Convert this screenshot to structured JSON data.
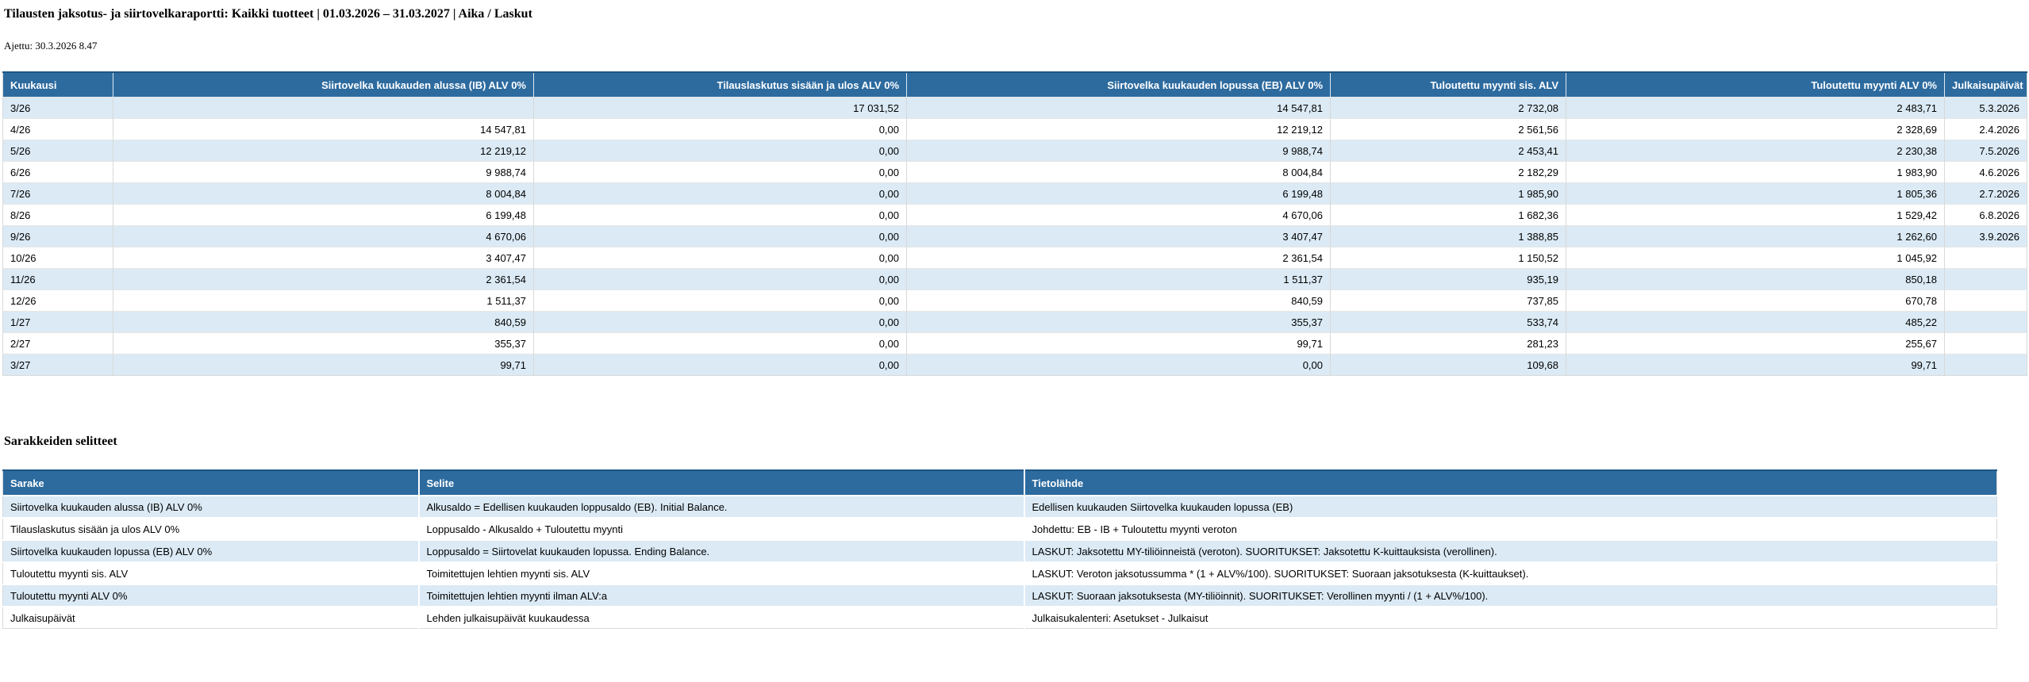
{
  "report": {
    "title": "Tilausten jaksotus- ja siirtovelkaraportti: Kaikki tuotteet | 01.03.2026 – 31.03.2027 | Aika / Laskut",
    "run_label": "Ajettu: 30.3.2026 8.47"
  },
  "main_table": {
    "columns": [
      "Kuukausi",
      "Siirtovelka kuukauden alussa (IB) ALV 0%",
      "Tilauslaskutus sisään ja ulos ALV 0%",
      "Siirtovelka kuukauden lopussa (EB) ALV 0%",
      "Tuloutettu myynti sis. ALV",
      "Tuloutettu myynti ALV 0%",
      "Julkaisupäivät"
    ],
    "rows": [
      [
        "3/26",
        "",
        "17 031,52",
        "14 547,81",
        "2 732,08",
        "2 483,71",
        "5.3.2026"
      ],
      [
        "4/26",
        "14 547,81",
        "0,00",
        "12 219,12",
        "2 561,56",
        "2 328,69",
        "2.4.2026"
      ],
      [
        "5/26",
        "12 219,12",
        "0,00",
        "9 988,74",
        "2 453,41",
        "2 230,38",
        "7.5.2026"
      ],
      [
        "6/26",
        "9 988,74",
        "0,00",
        "8 004,84",
        "2 182,29",
        "1 983,90",
        "4.6.2026"
      ],
      [
        "7/26",
        "8 004,84",
        "0,00",
        "6 199,48",
        "1 985,90",
        "1 805,36",
        "2.7.2026"
      ],
      [
        "8/26",
        "6 199,48",
        "0,00",
        "4 670,06",
        "1 682,36",
        "1 529,42",
        "6.8.2026"
      ],
      [
        "9/26",
        "4 670,06",
        "0,00",
        "3 407,47",
        "1 388,85",
        "1 262,60",
        "3.9.2026"
      ],
      [
        "10/26",
        "3 407,47",
        "0,00",
        "2 361,54",
        "1 150,52",
        "1 045,92",
        ""
      ],
      [
        "11/26",
        "2 361,54",
        "0,00",
        "1 511,37",
        "935,19",
        "850,18",
        ""
      ],
      [
        "12/26",
        "1 511,37",
        "0,00",
        "840,59",
        "737,85",
        "670,78",
        ""
      ],
      [
        "1/27",
        "840,59",
        "0,00",
        "355,37",
        "533,74",
        "485,22",
        ""
      ],
      [
        "2/27",
        "355,37",
        "0,00",
        "99,71",
        "281,23",
        "255,67",
        ""
      ],
      [
        "3/27",
        "99,71",
        "0,00",
        "0,00",
        "109,68",
        "99,71",
        ""
      ]
    ]
  },
  "legend": {
    "heading": "Sarakkeiden selitteet",
    "columns": [
      "Sarake",
      "Selite",
      "Tietolähde"
    ],
    "rows": [
      [
        "Siirtovelka kuukauden alussa (IB) ALV 0%",
        "Alkusaldo = Edellisen kuukauden loppusaldo (EB). Initial Balance.",
        "Edellisen kuukauden Siirtovelka kuukauden lopussa (EB)"
      ],
      [
        "Tilauslaskutus sisään ja ulos ALV 0%",
        "Loppusaldo - Alkusaldo + Tuloutettu myynti",
        "Johdettu: EB - IB + Tuloutettu myynti veroton"
      ],
      [
        "Siirtovelka kuukauden lopussa (EB) ALV 0%",
        "Loppusaldo = Siirtovelat kuukauden lopussa. Ending Balance.",
        "LASKUT: Jaksotettu MY-tiliöinneistä (veroton). SUORITUKSET: Jaksotettu K-kuittauksista (verollinen)."
      ],
      [
        "Tuloutettu myynti sis. ALV",
        "Toimitettujen lehtien myynti sis. ALV",
        "LASKUT: Veroton jaksotussumma * (1 + ALV%/100). SUORITUKSET: Suoraan jaksotuksesta (K-kuittaukset)."
      ],
      [
        "Tuloutettu myynti ALV 0%",
        "Toimitettujen lehtien myynti ilman ALV:a",
        "LASKUT: Suoraan jaksotuksesta (MY-tiliöinnit). SUORITUKSET: Verollinen myynti / (1 + ALV%/100)."
      ],
      [
        "Julkaisupäivät",
        "Lehden julkaisupäivät kuukaudessa",
        "Julkaisukalenteri: Asetukset - Julkaisut"
      ]
    ]
  },
  "colors": {
    "header_bg": "#2d6b9f",
    "header_top_border": "#1d5584",
    "row_alt_bg": "#dbeaf5"
  }
}
